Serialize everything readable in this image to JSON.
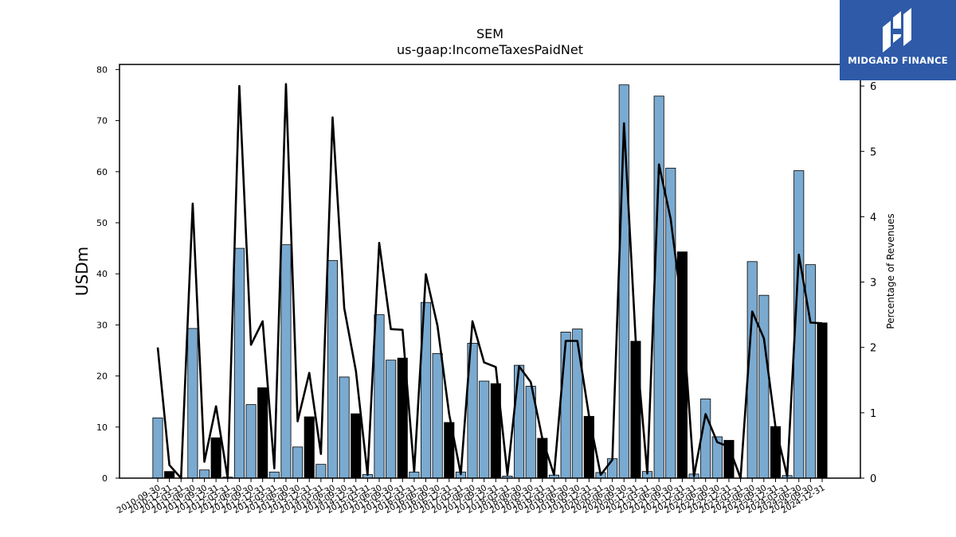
{
  "brand": {
    "name": "MIDGARD FINANCE",
    "logo_icon": "midgard-logo-icon",
    "color": "#2e5aa8"
  },
  "chart_data": {
    "type": "bar",
    "title": "SEM",
    "subtitle": "us-gaap:IncomeTaxesPaidNet",
    "ylabel": "USDm",
    "y2label": "Percentage of Revenues",
    "ylim": [
      0,
      81
    ],
    "y2lim": [
      0,
      6.33
    ],
    "yticks": [
      0,
      10,
      20,
      30,
      40,
      50,
      60,
      70,
      80
    ],
    "y2ticks": [
      0,
      1,
      2,
      3,
      4,
      5,
      6
    ],
    "colors": {
      "quarter_bar": "#7aaad0",
      "annual_bar": "#000000",
      "line": "#000000"
    },
    "categories": [
      "2010-09-30",
      "2010-12-31",
      "2011-03-31",
      "2011-06-30",
      "2011-09-30",
      "2011-12-31",
      "2012-03-31",
      "2012-06-30",
      "2012-09-30",
      "2012-12-31",
      "2013-03-31",
      "2013-06-30",
      "2013-09-30",
      "2013-12-31",
      "2014-03-31",
      "2014-06-30",
      "2014-09-30",
      "2014-12-31",
      "2015-03-31",
      "2015-06-30",
      "2015-09-30",
      "2015-12-31",
      "2016-03-31",
      "2016-06-30",
      "2016-09-30",
      "2016-12-31",
      "2017-03-31",
      "2017-06-30",
      "2017-09-30",
      "2017-12-31",
      "2018-03-31",
      "2018-06-30",
      "2018-09-30",
      "2018-12-31",
      "2019-03-31",
      "2019-06-30",
      "2019-09-30",
      "2019-12-31",
      "2020-03-31",
      "2020-06-30",
      "2020-09-30",
      "2020-12-31",
      "2021-03-31",
      "2021-06-30",
      "2021-09-30",
      "2021-12-31",
      "2022-03-31",
      "2022-06-30",
      "2022-09-30",
      "2022-12-31",
      "2023-03-31",
      "2023-06-30",
      "2023-09-30",
      "2023-12-31",
      "2024-03-31",
      "2024-06-30",
      "2024-09-30",
      "2024-12-31"
    ],
    "series": [
      {
        "kind": "bar",
        "values": [
          11.8,
          1.3,
          0,
          29.3,
          1.6,
          7.9,
          0.2,
          45.0,
          14.4,
          17.7,
          1.2,
          45.7,
          6.1,
          12.0,
          2.7,
          42.6,
          19.8,
          12.6,
          0.7,
          32.0,
          23.1,
          23.5,
          1.2,
          34.4,
          24.4,
          10.9,
          1.2,
          26.4,
          19.0,
          18.5,
          0.4,
          22.1,
          18.0,
          7.8,
          0.6,
          28.6,
          29.2,
          12.1,
          1.1,
          3.8,
          77.0,
          26.8,
          1.3,
          74.8,
          60.7,
          44.3,
          0.8,
          15.5,
          8.1,
          7.4,
          0,
          42.4,
          35.8,
          10.1,
          0.5,
          60.2,
          41.8,
          30.4
        ]
      },
      {
        "kind": "line",
        "axis": "right",
        "values": [
          2.0,
          0.2,
          0,
          4.2,
          0.25,
          1.1,
          0,
          6.0,
          2.04,
          2.4,
          0.15,
          6.03,
          0.87,
          1.61,
          0.37,
          5.52,
          2.6,
          1.64,
          0.05,
          3.6,
          2.28,
          2.27,
          0.1,
          3.12,
          2.33,
          0.98,
          0.06,
          2.4,
          1.77,
          1.7,
          0.05,
          1.71,
          1.47,
          0.6,
          0.05,
          2.1,
          2.1,
          0.95,
          0.05,
          0.28,
          5.43,
          2.12,
          0.07,
          4.8,
          3.97,
          2.57,
          0.03,
          0.98,
          0.55,
          0.48,
          0,
          2.55,
          2.14,
          0.78,
          0.03,
          3.42,
          2.38,
          2.37
        ]
      }
    ],
    "grid": false,
    "legend": "none"
  }
}
